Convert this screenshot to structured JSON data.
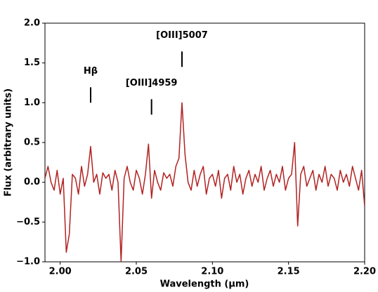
{
  "chart_data": {
    "type": "line",
    "xlabel": "Wavelength (µm)",
    "ylabel": "Flux (arbitrary units)",
    "xlim": [
      1.99,
      2.2
    ],
    "ylim": [
      -1,
      2
    ],
    "xticks": [
      {
        "value": 2,
        "label": "2.00"
      },
      {
        "value": 2.05,
        "label": "2.05"
      },
      {
        "value": 2.1,
        "label": "2.10"
      },
      {
        "value": 2.15,
        "label": "2.15"
      },
      {
        "value": 2.2,
        "label": "2.20"
      }
    ],
    "yticks": [
      {
        "value": -1,
        "label": "−1.0"
      },
      {
        "value": -0.5,
        "label": "−0.5"
      },
      {
        "value": 0,
        "label": "0.0"
      },
      {
        "value": 0.5,
        "label": "0.5"
      },
      {
        "value": 1,
        "label": "1.0"
      },
      {
        "value": 1.5,
        "label": "1.5"
      },
      {
        "value": 2,
        "label": "2.0"
      }
    ],
    "x": [
      1.99,
      1.992,
      1.994,
      1.996,
      1.998,
      2,
      2.002,
      2.004,
      2.006,
      2.008,
      2.01,
      2.012,
      2.014,
      2.016,
      2.018,
      2.02,
      2.022,
      2.024,
      2.026,
      2.028,
      2.03,
      2.032,
      2.034,
      2.036,
      2.038,
      2.04,
      2.042,
      2.044,
      2.046,
      2.048,
      2.05,
      2.052,
      2.054,
      2.056,
      2.058,
      2.06,
      2.062,
      2.064,
      2.066,
      2.068,
      2.07,
      2.072,
      2.074,
      2.076,
      2.078,
      2.08,
      2.082,
      2.084,
      2.086,
      2.088,
      2.09,
      2.092,
      2.094,
      2.096,
      2.098,
      2.1,
      2.102,
      2.104,
      2.106,
      2.108,
      2.11,
      2.112,
      2.114,
      2.116,
      2.118,
      2.12,
      2.122,
      2.124,
      2.126,
      2.128,
      2.13,
      2.132,
      2.134,
      2.136,
      2.138,
      2.14,
      2.142,
      2.144,
      2.146,
      2.148,
      2.15,
      2.152,
      2.154,
      2.156,
      2.158,
      2.16,
      2.162,
      2.164,
      2.166,
      2.168,
      2.17,
      2.172,
      2.174,
      2.176,
      2.178,
      2.18,
      2.182,
      2.184,
      2.186,
      2.188,
      2.19,
      2.192,
      2.194,
      2.196,
      2.198,
      2.2
    ],
    "series": [
      {
        "color": "#b22222",
        "values": [
          0.05,
          0.2,
          0,
          -0.1,
          0.15,
          -0.15,
          0.05,
          -0.88,
          -0.65,
          0.1,
          0.05,
          -0.15,
          0.2,
          -0.05,
          0.1,
          0.45,
          0,
          0.1,
          -0.15,
          0.12,
          0.05,
          0.1,
          -0.1,
          0.15,
          0,
          -1,
          0.05,
          0.2,
          0,
          -0.1,
          0.15,
          0.05,
          -0.15,
          0.1,
          0.48,
          -0.2,
          0.15,
          0,
          -0.1,
          0.12,
          0.05,
          0.1,
          -0.05,
          0.2,
          0.3,
          1,
          0.35,
          0,
          -0.1,
          0.15,
          -0.05,
          0.1,
          0.2,
          -0.15,
          0.05,
          0.1,
          -0.05,
          0.15,
          -0.2,
          0.05,
          0.1,
          -0.1,
          0.2,
          0,
          0.1,
          -0.15,
          0.05,
          0.15,
          -0.05,
          0.1,
          0,
          0.2,
          -0.1,
          0.05,
          0.15,
          -0.05,
          0.1,
          0,
          0.2,
          -0.1,
          0.05,
          0.1,
          0.5,
          -0.55,
          0.1,
          0.2,
          -0.05,
          0.05,
          0.15,
          -0.1,
          0.1,
          0,
          0.2,
          -0.05,
          0.1,
          0.05,
          -0.1,
          0.15,
          0,
          0.1,
          -0.05,
          0.2,
          0.05,
          -0.1,
          0.15,
          -0.3
        ]
      }
    ],
    "annotations": [
      {
        "text": "Hβ",
        "x": 2.02,
        "y": 1.0
      },
      {
        "text": "[OIII]4959",
        "x": 2.06,
        "y": 0.85
      },
      {
        "text": "[OIII]5007",
        "x": 2.08,
        "y": 1.45
      }
    ]
  }
}
